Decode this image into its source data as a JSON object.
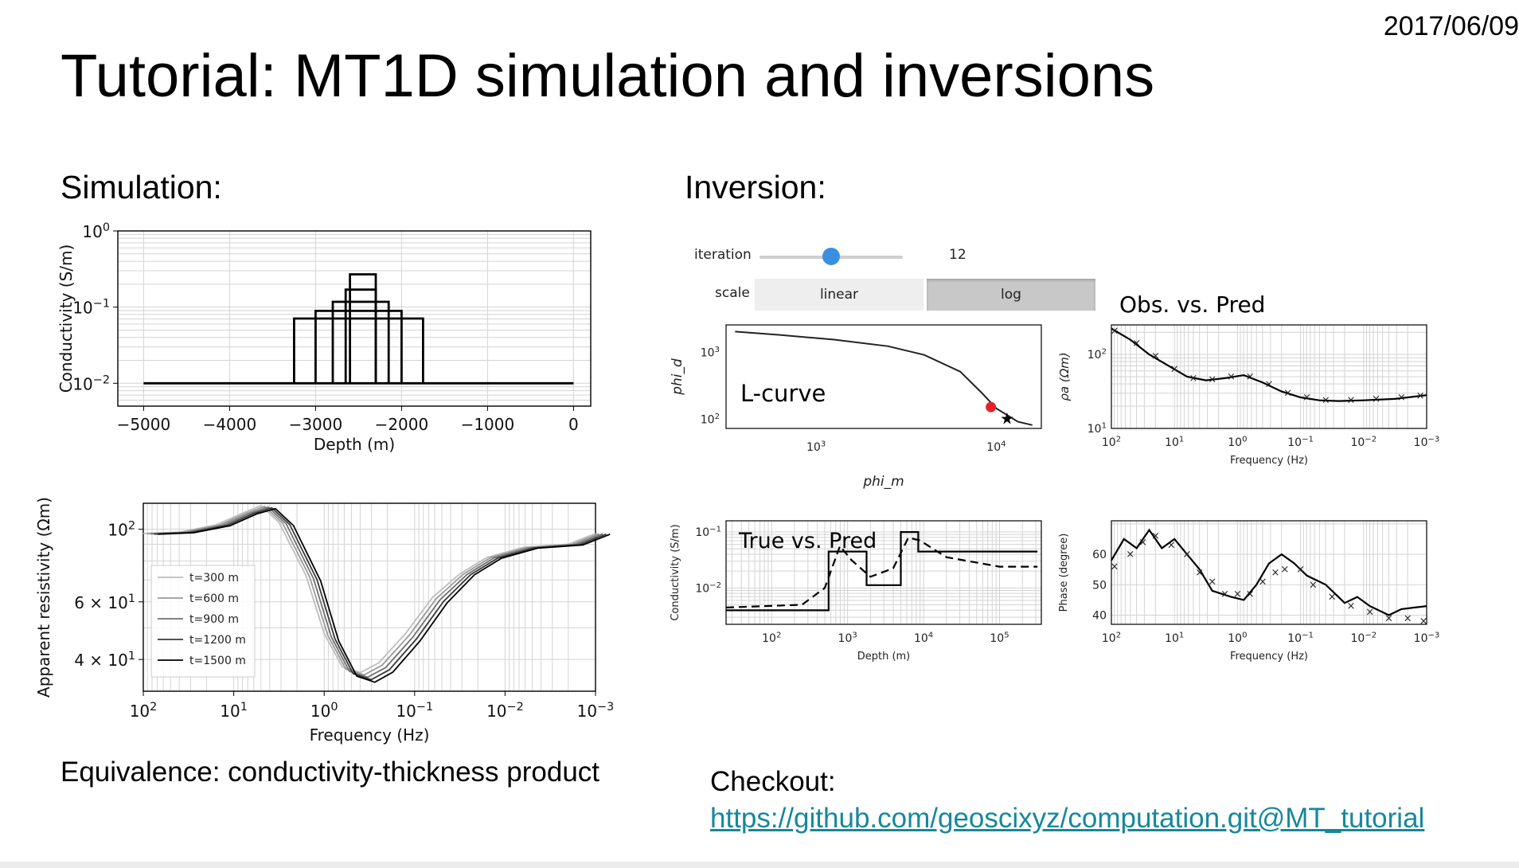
{
  "slide": {
    "date": "2017/06/09",
    "title": "Tutorial: MT1D simulation and inversions",
    "simulation_heading": "Simulation:",
    "inversion_heading": "Inversion:",
    "equivalence_text": "Equivalence: conductivity-thickness product",
    "checkout_label": "Checkout:",
    "checkout_link": "https://github.com/geoscixyz/computation.git@MT_tutorial",
    "colors": {
      "link": "#16889c",
      "slider_thumb": "#3b8fe0",
      "marker_red": "#e8202a"
    }
  },
  "controls": {
    "iteration_label": "iteration",
    "iteration_value": "12",
    "iteration_fraction": 0.5,
    "scale_label": "scale",
    "scale_options": [
      "linear",
      "log"
    ],
    "scale_selected": "log"
  },
  "chart_data": [
    {
      "id": "sim-conductivity",
      "type": "line",
      "xlabel": "Depth (m)",
      "ylabel": "Conductivity (S/m)",
      "x_ticks": [
        "−5000",
        "−4000",
        "−3000",
        "−2000",
        "−1000",
        "0"
      ],
      "y_ticks": [
        "10^0",
        "10^-1",
        "10^-2"
      ],
      "xlim": [
        -5300,
        200
      ],
      "ylim_log10": [
        -2.3,
        0
      ],
      "background_log10": -2,
      "boxes": [
        {
          "x0": -3250,
          "x1": -1750,
          "log10": -1.15
        },
        {
          "x0": -3000,
          "x1": -2000,
          "log10": -1.05
        },
        {
          "x0": -2800,
          "x1": -2150,
          "log10": -0.93
        },
        {
          "x0": -2650,
          "x1": -2300,
          "log10": -0.77
        },
        {
          "x0": -2600,
          "x1": -2300,
          "log10": -0.57
        }
      ]
    },
    {
      "id": "sim-apparent-resistivity",
      "type": "line",
      "xlabel": "Frequency (Hz)",
      "ylabel": "Apparent resistivity (Ωm)",
      "x_ticks": [
        "10^2",
        "10^1",
        "10^0",
        "10^-1",
        "10^-2",
        "10^-3"
      ],
      "y_ticks": [
        "10^2",
        "6 × 10^1",
        "4 × 10^1"
      ],
      "legend": [
        "t=300 m",
        "t=600 m",
        "t=900 m",
        "t=1200 m",
        "t=1500 m"
      ],
      "legend_position": "bottom-left",
      "series_base": [
        [
          2.0,
          97
        ],
        [
          1.6,
          98
        ],
        [
          1.2,
          103
        ],
        [
          0.9,
          112
        ],
        [
          0.7,
          118
        ],
        [
          0.5,
          105
        ],
        [
          0.2,
          72
        ],
        [
          0.0,
          48
        ],
        [
          -0.2,
          38
        ],
        [
          -0.4,
          36.5
        ],
        [
          -0.6,
          39
        ],
        [
          -0.9,
          48
        ],
        [
          -1.2,
          62
        ],
        [
          -1.5,
          73
        ],
        [
          -1.8,
          82
        ],
        [
          -2.2,
          88
        ],
        [
          -2.7,
          90
        ],
        [
          -3.0,
          97
        ]
      ],
      "series_offsets": [
        [
          0,
          0
        ],
        [
          0.04,
          -0.6
        ],
        [
          0.08,
          -1.2
        ],
        [
          0.12,
          -1.8
        ],
        [
          0.16,
          -2.4
        ]
      ]
    },
    {
      "id": "inv-lcurve",
      "type": "line",
      "xlabel": "phi_m",
      "ylabel": "phi_d",
      "annotation": "L-curve",
      "x_ticks": [
        "10^3",
        "10^4"
      ],
      "y_ticks": [
        "10^3",
        "10^2"
      ],
      "points": [
        [
          2.55,
          3.3
        ],
        [
          2.8,
          3.25
        ],
        [
          3.1,
          3.18
        ],
        [
          3.4,
          3.08
        ],
        [
          3.6,
          2.95
        ],
        [
          3.8,
          2.7
        ],
        [
          3.92,
          2.38
        ],
        [
          4.0,
          2.15
        ],
        [
          4.12,
          1.95
        ],
        [
          4.2,
          1.9
        ]
      ],
      "red_point": [
        3.97,
        2.17
      ],
      "star_point": [
        4.06,
        2.0
      ]
    },
    {
      "id": "inv-obs-pred-rho",
      "type": "line",
      "title": "Obs. vs. Pred",
      "xlabel": "Frequency (Hz)",
      "ylabel": "ρa (Ωm)",
      "x_ticks": [
        "10^2",
        "10^1",
        "10^0",
        "10^-1",
        "10^-2",
        "10^-3"
      ],
      "y_ticks": [
        "10^2",
        "10^1"
      ],
      "pred": [
        [
          2.0,
          2.35
        ],
        [
          1.7,
          2.2
        ],
        [
          1.4,
          2.0
        ],
        [
          1.1,
          1.85
        ],
        [
          0.8,
          1.7
        ],
        [
          0.5,
          1.65
        ],
        [
          0.2,
          1.68
        ],
        [
          -0.1,
          1.72
        ],
        [
          -0.4,
          1.62
        ],
        [
          -0.7,
          1.5
        ],
        [
          -1.0,
          1.42
        ],
        [
          -1.3,
          1.38
        ],
        [
          -1.6,
          1.37
        ],
        [
          -2.0,
          1.38
        ],
        [
          -2.5,
          1.4
        ],
        [
          -3.0,
          1.45
        ]
      ],
      "observed": [
        [
          1.95,
          2.32
        ],
        [
          1.6,
          2.15
        ],
        [
          1.3,
          1.98
        ],
        [
          1.0,
          1.8
        ],
        [
          0.7,
          1.68
        ],
        [
          0.4,
          1.66
        ],
        [
          0.1,
          1.7
        ],
        [
          -0.2,
          1.7
        ],
        [
          -0.5,
          1.6
        ],
        [
          -0.8,
          1.48
        ],
        [
          -1.1,
          1.42
        ],
        [
          -1.4,
          1.38
        ],
        [
          -1.8,
          1.38
        ],
        [
          -2.2,
          1.4
        ],
        [
          -2.6,
          1.42
        ],
        [
          -2.9,
          1.44
        ]
      ]
    },
    {
      "id": "inv-true-pred",
      "type": "line",
      "annotation": "True vs. Pred",
      "xlabel": "Depth (m)",
      "ylabel": "Conductivity (S/m)",
      "x_ticks": [
        "10^2",
        "10^3",
        "10^4",
        "10^5"
      ],
      "y_ticks": [
        "10^-1",
        "10^-2"
      ],
      "true_model": [
        [
          1.4,
          -2.4
        ],
        [
          2.75,
          -2.4
        ],
        [
          2.75,
          -1.35
        ],
        [
          3.25,
          -1.35
        ],
        [
          3.25,
          -1.95
        ],
        [
          3.7,
          -1.95
        ],
        [
          3.7,
          -1.0
        ],
        [
          3.93,
          -1.0
        ],
        [
          3.93,
          -1.35
        ],
        [
          5.5,
          -1.35
        ]
      ],
      "pred_model": [
        [
          1.4,
          -2.35
        ],
        [
          2.4,
          -2.3
        ],
        [
          2.7,
          -2.0
        ],
        [
          2.9,
          -1.25
        ],
        [
          3.05,
          -1.5
        ],
        [
          3.3,
          -1.8
        ],
        [
          3.6,
          -1.65
        ],
        [
          3.8,
          -1.1
        ],
        [
          3.95,
          -1.15
        ],
        [
          4.3,
          -1.45
        ],
        [
          5.0,
          -1.62
        ],
        [
          5.5,
          -1.62
        ]
      ]
    },
    {
      "id": "inv-phase",
      "type": "line",
      "xlabel": "Frequency (Hz)",
      "ylabel": "Phase (degree)",
      "x_ticks": [
        "10^2",
        "10^1",
        "10^0",
        "10^-1",
        "10^-2",
        "10^-3"
      ],
      "y_ticks": [
        "60",
        "50",
        "40"
      ],
      "pred": [
        [
          2.0,
          58
        ],
        [
          1.8,
          65
        ],
        [
          1.6,
          62
        ],
        [
          1.4,
          68
        ],
        [
          1.2,
          62
        ],
        [
          1.0,
          65
        ],
        [
          0.8,
          60
        ],
        [
          0.6,
          55
        ],
        [
          0.4,
          48
        ],
        [
          0.1,
          46
        ],
        [
          -0.1,
          45
        ],
        [
          -0.3,
          50
        ],
        [
          -0.5,
          57
        ],
        [
          -0.7,
          60
        ],
        [
          -0.9,
          57
        ],
        [
          -1.1,
          53
        ],
        [
          -1.4,
          50
        ],
        [
          -1.7,
          44
        ],
        [
          -1.9,
          46
        ],
        [
          -2.1,
          43
        ],
        [
          -2.4,
          40
        ],
        [
          -2.6,
          42
        ],
        [
          -3.0,
          43
        ]
      ],
      "observed": [
        [
          1.95,
          56
        ],
        [
          1.7,
          60
        ],
        [
          1.5,
          64
        ],
        [
          1.3,
          66
        ],
        [
          1.05,
          63
        ],
        [
          0.8,
          60
        ],
        [
          0.6,
          54
        ],
        [
          0.4,
          51
        ],
        [
          0.2,
          47
        ],
        [
          0.0,
          47
        ],
        [
          -0.2,
          47
        ],
        [
          -0.4,
          51
        ],
        [
          -0.6,
          54
        ],
        [
          -0.75,
          55
        ],
        [
          -1.0,
          55
        ],
        [
          -1.2,
          50
        ],
        [
          -1.5,
          46
        ],
        [
          -1.8,
          43
        ],
        [
          -2.1,
          41
        ],
        [
          -2.4,
          39
        ],
        [
          -2.7,
          39
        ],
        [
          -2.95,
          38
        ]
      ]
    }
  ]
}
